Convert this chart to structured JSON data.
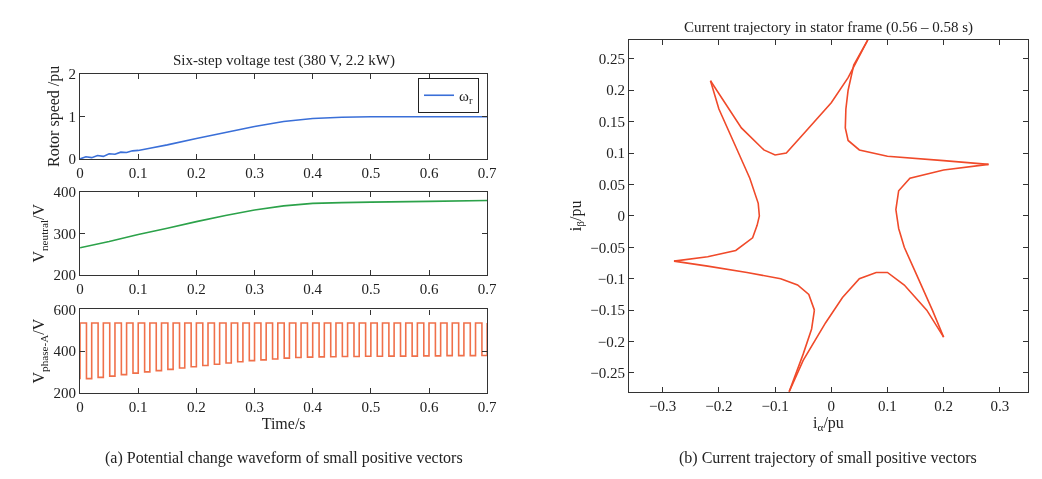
{
  "chart_data": [
    {
      "type": "line",
      "title": "Six-step voltage test (380 V, 2.2 kW)",
      "ylabel": "Rotor speed /pu",
      "xlim": [
        0,
        0.7
      ],
      "xticks": [
        0,
        0.1,
        0.2,
        0.3,
        0.4,
        0.5,
        0.6,
        0.7
      ],
      "ylim": [
        0,
        2
      ],
      "yticks": [
        0,
        1,
        2
      ],
      "legend": "top right",
      "series": [
        {
          "name": "ω$_{r}$",
          "color": "#3a6fd8",
          "x": [
            0,
            0.01,
            0.02,
            0.03,
            0.04,
            0.05,
            0.06,
            0.07,
            0.08,
            0.09,
            0.1,
            0.12,
            0.15,
            0.2,
            0.25,
            0.3,
            0.35,
            0.4,
            0.45,
            0.5,
            0.7
          ],
          "values": [
            0,
            0.05,
            0.03,
            0.08,
            0.06,
            0.12,
            0.11,
            0.16,
            0.15,
            0.19,
            0.2,
            0.25,
            0.33,
            0.48,
            0.62,
            0.76,
            0.88,
            0.95,
            0.98,
            0.99,
            0.99
          ]
        }
      ]
    },
    {
      "type": "line",
      "ylabel": "V$_{neutral}$/V",
      "xlim": [
        0,
        0.7
      ],
      "xticks": [
        0,
        0.1,
        0.2,
        0.3,
        0.4,
        0.5,
        0.6,
        0.7
      ],
      "ylim": [
        200,
        400
      ],
      "yticks": [
        200,
        300,
        400
      ],
      "series": [
        {
          "color": "#2ca24a",
          "x": [
            0,
            0.05,
            0.1,
            0.15,
            0.2,
            0.25,
            0.3,
            0.35,
            0.4,
            0.45,
            0.5,
            0.6,
            0.7
          ],
          "values": [
            265,
            280,
            297,
            312,
            328,
            343,
            356,
            366,
            372,
            374,
            375,
            377,
            379
          ]
        }
      ]
    },
    {
      "type": "step",
      "xlabel": "Time/s",
      "ylabel": "V$_{phase-A}$/V",
      "xlim": [
        0,
        0.7
      ],
      "xticks": [
        0,
        0.1,
        0.2,
        0.3,
        0.4,
        0.5,
        0.6,
        0.7
      ],
      "ylim": [
        200,
        600
      ],
      "yticks": [
        200,
        400,
        600
      ],
      "annotations": [
        "(a) Potential change waveform of small positive vectors"
      ],
      "series": [
        {
          "color": "#f0704a",
          "x": [
            0,
            0,
            0.011,
            0.02,
            0.031,
            0.04,
            0.051,
            0.06,
            0.071,
            0.08,
            0.091,
            0.1,
            0.111,
            0.12,
            0.131,
            0.14,
            0.151,
            0.16,
            0.171,
            0.18,
            0.191,
            0.2,
            0.211,
            0.22,
            0.231,
            0.24,
            0.251,
            0.26,
            0.271,
            0.28,
            0.291,
            0.3,
            0.311,
            0.32,
            0.331,
            0.34,
            0.351,
            0.36,
            0.371,
            0.38,
            0.391,
            0.4,
            0.411,
            0.42,
            0.431,
            0.44,
            0.451,
            0.46,
            0.471,
            0.48,
            0.491,
            0.5,
            0.511,
            0.52,
            0.531,
            0.54,
            0.551,
            0.56,
            0.571,
            0.58,
            0.591,
            0.6,
            0.611,
            0.62,
            0.631,
            0.64,
            0.651,
            0.66,
            0.671,
            0.68,
            0.691,
            0.7
          ],
          "values": [
            265,
            535,
            268,
            535,
            274,
            535,
            280,
            535,
            287,
            535,
            294,
            535,
            300,
            535,
            306,
            535,
            312,
            535,
            319,
            535,
            325,
            535,
            331,
            535,
            337,
            535,
            343,
            535,
            349,
            535,
            354,
            535,
            358,
            535,
            362,
            535,
            366,
            535,
            369,
            535,
            371,
            535,
            372,
            535,
            373,
            535,
            374,
            535,
            374,
            535,
            375,
            535,
            375,
            535,
            376,
            535,
            376,
            535,
            376,
            535,
            377,
            535,
            377,
            535,
            378,
            535,
            378,
            535,
            378,
            535,
            379,
            535
          ]
        }
      ]
    },
    {
      "type": "line",
      "title": "Current trajectory in stator frame (0.56 – 0.58 s)",
      "xlabel": "i$_{α}$/pu",
      "ylabel": "i$_{β}$/pu",
      "xlim": [
        -0.36,
        0.35
      ],
      "ylim": [
        -0.28,
        0.28
      ],
      "xticks": [
        {
          "value": -0.3,
          "label": "−0.3"
        },
        {
          "value": -0.2,
          "label": "−0.2"
        },
        {
          "value": -0.1,
          "label": "−0.1"
        },
        0,
        0.1,
        0.2,
        0.3
      ],
      "yticks": [
        {
          "value": -0.25,
          "label": "−0.25"
        },
        {
          "value": -0.2,
          "label": "−0.2"
        },
        {
          "value": -0.15,
          "label": "−0.15"
        },
        {
          "value": -0.1,
          "label": "−0.1"
        },
        {
          "value": -0.05,
          "label": "−0.05"
        },
        0,
        0.05,
        0.1,
        0.15,
        0.2,
        0.25
      ],
      "annotations": [
        "(b) Current trajectory of small positive vectors"
      ],
      "series": [
        {
          "color": "#f04a2a",
          "x": [
            0.28,
            0.2,
            0.1,
            0.05,
            0.03,
            0.025,
            0.026,
            0.03,
            0.04,
            0.065
          ],
          "values": [
            0.082,
            0.088,
            0.095,
            0.105,
            0.12,
            0.14,
            0.17,
            0.2,
            0.24,
            0.28
          ]
        },
        {
          "color": "#f04a2a",
          "x": [
            0.065,
            0.03,
            0,
            -0.05,
            -0.08,
            -0.1,
            -0.12,
            -0.16,
            -0.215
          ],
          "values": [
            0.28,
            0.22,
            0.18,
            0.13,
            0.1,
            0.097,
            0.105,
            0.14,
            0.215
          ]
        },
        {
          "color": "#f04a2a",
          "x": [
            -0.215,
            -0.2,
            -0.17,
            -0.145,
            -0.13,
            -0.128,
            -0.132,
            -0.14,
            -0.17,
            -0.22,
            -0.28
          ],
          "values": [
            0.215,
            0.17,
            0.11,
            0.06,
            0.02,
            0,
            -0.015,
            -0.035,
            -0.055,
            -0.065,
            -0.072
          ]
        },
        {
          "color": "#f04a2a",
          "x": [
            -0.28,
            -0.22,
            -0.15,
            -0.09,
            -0.06,
            -0.04,
            -0.03
          ],
          "values": [
            -0.072,
            -0.08,
            -0.09,
            -0.1,
            -0.11,
            -0.125,
            -0.15
          ]
        },
        {
          "color": "#f04a2a",
          "x": [
            -0.03,
            -0.035,
            -0.05,
            -0.075
          ],
          "values": [
            -0.15,
            -0.18,
            -0.22,
            -0.28
          ]
        },
        {
          "color": "#f04a2a",
          "x": [
            -0.075,
            -0.05,
            -0.01,
            0.02,
            0.05,
            0.08,
            0.1,
            0.13,
            0.17,
            0.2
          ],
          "values": [
            -0.28,
            -0.23,
            -0.17,
            -0.13,
            -0.1,
            -0.09,
            -0.09,
            -0.11,
            -0.15,
            -0.193
          ]
        },
        {
          "color": "#f04a2a",
          "x": [
            0.2,
            0.18,
            0.15,
            0.13,
            0.12,
            0.115,
            0.12,
            0.14,
            0.2,
            0.28
          ],
          "values": [
            -0.193,
            -0.15,
            -0.09,
            -0.05,
            -0.02,
            0.01,
            0.04,
            0.06,
            0.073,
            0.082
          ]
        }
      ]
    }
  ]
}
